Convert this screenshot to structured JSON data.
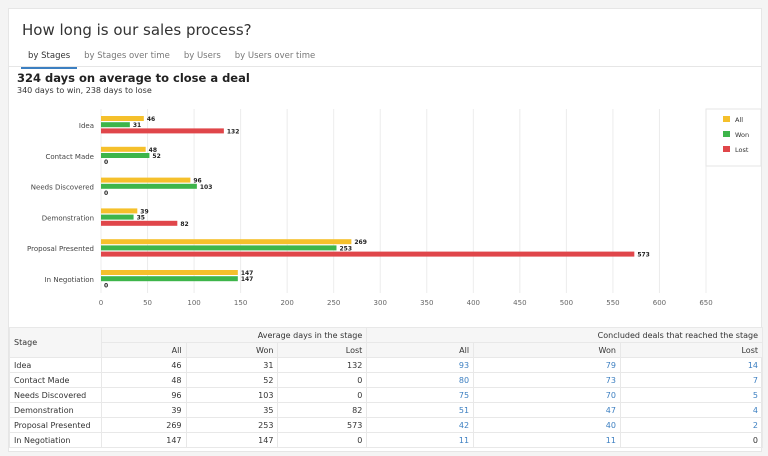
{
  "title": "How long is our sales process?",
  "tabs": [
    {
      "label": "by Stages",
      "active": true
    },
    {
      "label": "by Stages over time"
    },
    {
      "label": "by Users"
    },
    {
      "label": "by Users over time"
    }
  ],
  "summary": {
    "headline": "324 days on average to close a deal",
    "subline": "340 days to win, 238 days to lose"
  },
  "chart_data": {
    "type": "bar",
    "orientation": "horizontal",
    "grid": true,
    "legend_position": "top-right",
    "categories": [
      "Idea",
      "Contact Made",
      "Needs Discovered",
      "Demonstration",
      "Proposal Presented",
      "In Negotiation"
    ],
    "series": [
      {
        "name": "All",
        "color": "#f5c02b",
        "values": [
          46,
          48,
          96,
          39,
          269,
          147
        ]
      },
      {
        "name": "Won",
        "color": "#3db54a",
        "values": [
          31,
          52,
          103,
          35,
          253,
          147
        ]
      },
      {
        "name": "Lost",
        "color": "#e0464a",
        "values": [
          132,
          0,
          0,
          82,
          573,
          0
        ]
      }
    ],
    "xticks": [
      0,
      50,
      100,
      150,
      200,
      250,
      300,
      350,
      400,
      450,
      500,
      550,
      600,
      650
    ],
    "xlim": [
      0,
      650
    ]
  },
  "table": {
    "stage_header": "Stage",
    "group1": "Average days in the stage",
    "group2": "Concluded deals that reached the stage",
    "subheaders": [
      "All",
      "Won",
      "Lost",
      "All",
      "Won",
      "Lost"
    ],
    "rows": [
      [
        "Idea",
        "46",
        "31",
        "132",
        "93",
        "79",
        "14"
      ],
      [
        "Contact Made",
        "48",
        "52",
        "0",
        "80",
        "73",
        "7"
      ],
      [
        "Needs Discovered",
        "96",
        "103",
        "0",
        "75",
        "70",
        "5"
      ],
      [
        "Demonstration",
        "39",
        "35",
        "82",
        "51",
        "47",
        "4"
      ],
      [
        "Proposal Presented",
        "269",
        "253",
        "573",
        "42",
        "40",
        "2"
      ],
      [
        "In Negotiation",
        "147",
        "147",
        "0",
        "11",
        "11",
        "0"
      ]
    ]
  }
}
